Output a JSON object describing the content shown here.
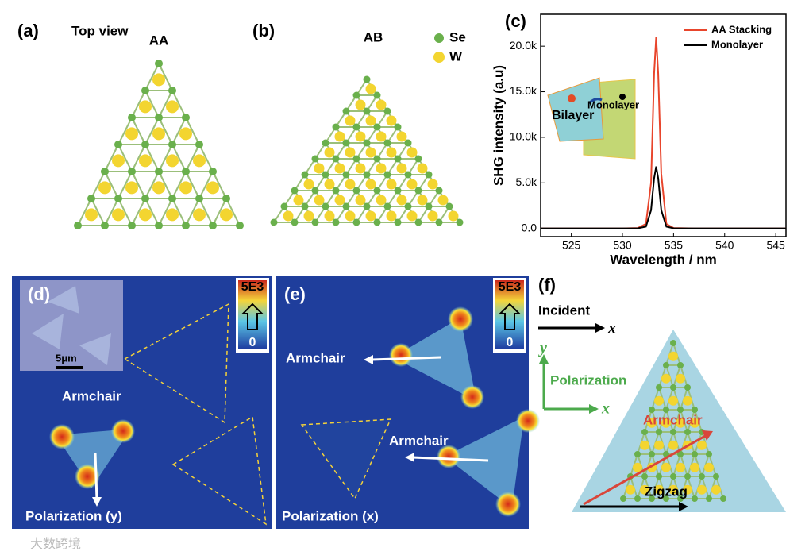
{
  "panels": {
    "a": {
      "label": "(a)",
      "subtitle": "Top view",
      "title": "AA"
    },
    "b": {
      "label": "(b)",
      "title": "AB",
      "legend": [
        "Se",
        "W"
      ]
    },
    "c": {
      "label": "(c)",
      "inset": [
        "Bilayer",
        "Monolayer"
      ]
    },
    "d": {
      "label": "(d)",
      "colorbar": [
        "5E3",
        "0"
      ],
      "scale": "5μm",
      "texts": [
        "Armchair",
        "Polarization (y)"
      ]
    },
    "e": {
      "label": "(e)",
      "colorbar": [
        "5E3",
        "0"
      ],
      "texts": [
        "Armchair",
        "Armchair",
        "Polarization (x)"
      ]
    },
    "f": {
      "label": "(f)",
      "texts": [
        "Incident",
        "x",
        "y",
        "Polarization",
        "x",
        "Armchair",
        "Zigzag"
      ]
    },
    "watermark": "大数跨境"
  },
  "chart_data": {
    "type": "line",
    "xlabel": "Wavelength / nm",
    "ylabel": "SHG intensity (a.u)",
    "x": [
      522,
      530,
      531.5,
      532.3,
      532.8,
      533.1,
      533.3,
      533.5,
      533.8,
      534.3,
      535,
      537,
      546
    ],
    "series": [
      {
        "name": "AA Stacking",
        "color": "#e8452c",
        "values": [
          0,
          0,
          50,
          500,
          5000,
          17000,
          21000,
          17000,
          6000,
          500,
          50,
          0,
          0
        ]
      },
      {
        "name": "Monolayer",
        "color": "#000000",
        "values": [
          0,
          0,
          20,
          200,
          2000,
          5500,
          6800,
          5500,
          2000,
          200,
          20,
          0,
          0
        ]
      }
    ],
    "xlim": [
      522,
      546
    ],
    "xticks": [
      525,
      530,
      535,
      540,
      545
    ],
    "ylim": [
      -900,
      23500
    ],
    "yticks": [
      {
        "value": 0,
        "label": "0.0"
      },
      {
        "value": 5000,
        "label": "5.0k"
      },
      {
        "value": 10000,
        "label": "10.0k"
      },
      {
        "value": 15000,
        "label": "15.0k"
      },
      {
        "value": 20000,
        "label": "20.0k"
      }
    ],
    "legend": "upper right"
  }
}
